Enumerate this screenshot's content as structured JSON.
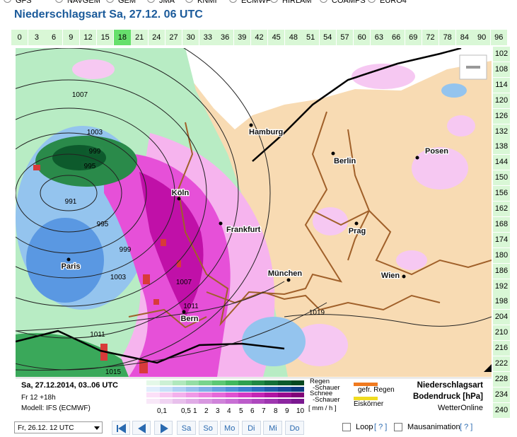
{
  "models": [
    "GFS",
    "NAVGEM",
    "GEM",
    "JMA",
    "KNMI",
    "ECMWF",
    "HIRLAM",
    "COAMPS",
    "EURO4"
  ],
  "title": "Niederschlagsart Sa, 27.12. 06 UTC",
  "hour_tabs": {
    "items": [
      "0",
      "3",
      "6",
      "9",
      "12",
      "15",
      "18",
      "21",
      "24",
      "27",
      "30",
      "33",
      "36",
      "39",
      "42",
      "45",
      "48",
      "51",
      "54",
      "57",
      "60",
      "63",
      "66",
      "69",
      "72",
      "78",
      "84",
      "90",
      "96"
    ],
    "selected": "18"
  },
  "hour_side": {
    "items": [
      "102",
      "108",
      "114",
      "120",
      "126",
      "132",
      "138",
      "144",
      "150",
      "156",
      "162",
      "168",
      "174",
      "180",
      "186",
      "192",
      "198",
      "204",
      "210",
      "216",
      "222",
      "228",
      "234",
      "240"
    ]
  },
  "map": {
    "cities": [
      "Hamburg",
      "Berlin",
      "Posen",
      "Köln",
      "Frankfurt",
      "Prag",
      "Paris",
      "München",
      "Wien",
      "Bern"
    ],
    "isobars": [
      "1007",
      "1003",
      "999",
      "995",
      "991",
      "995",
      "999",
      "1003",
      "1007",
      "1011",
      "1015",
      "1019",
      "1011"
    ]
  },
  "legend": {
    "date": "Sa, 27.12.2014, 03..06 UTC",
    "run": "Fr 12 +18h",
    "model": "Modell: IFS (ECMWF)",
    "rows": [
      "Regen",
      "-Schauer",
      "Schnee",
      "-Schauer"
    ],
    "scale": [
      "0,1",
      "0,5",
      "1",
      "2",
      "3",
      "4",
      "5",
      "6",
      "7",
      "8",
      "9",
      "10"
    ],
    "unit": "[ mm / h ]",
    "frozen": [
      "gefr. Regen",
      "Eiskörner"
    ],
    "info": [
      "Niederschlagsart",
      "Bodendruck [hPa]",
      "WetterOnline"
    ]
  },
  "controls": {
    "run_select": "Fr, 26.12. 12 UTC",
    "days": [
      "Sa",
      "So",
      "Mo",
      "Di",
      "Mi",
      "Do"
    ],
    "loop": "Loop",
    "loop_help": "[ ? ]",
    "mouse": "Mausanimation",
    "mouse_help": "[ ? ]"
  }
}
